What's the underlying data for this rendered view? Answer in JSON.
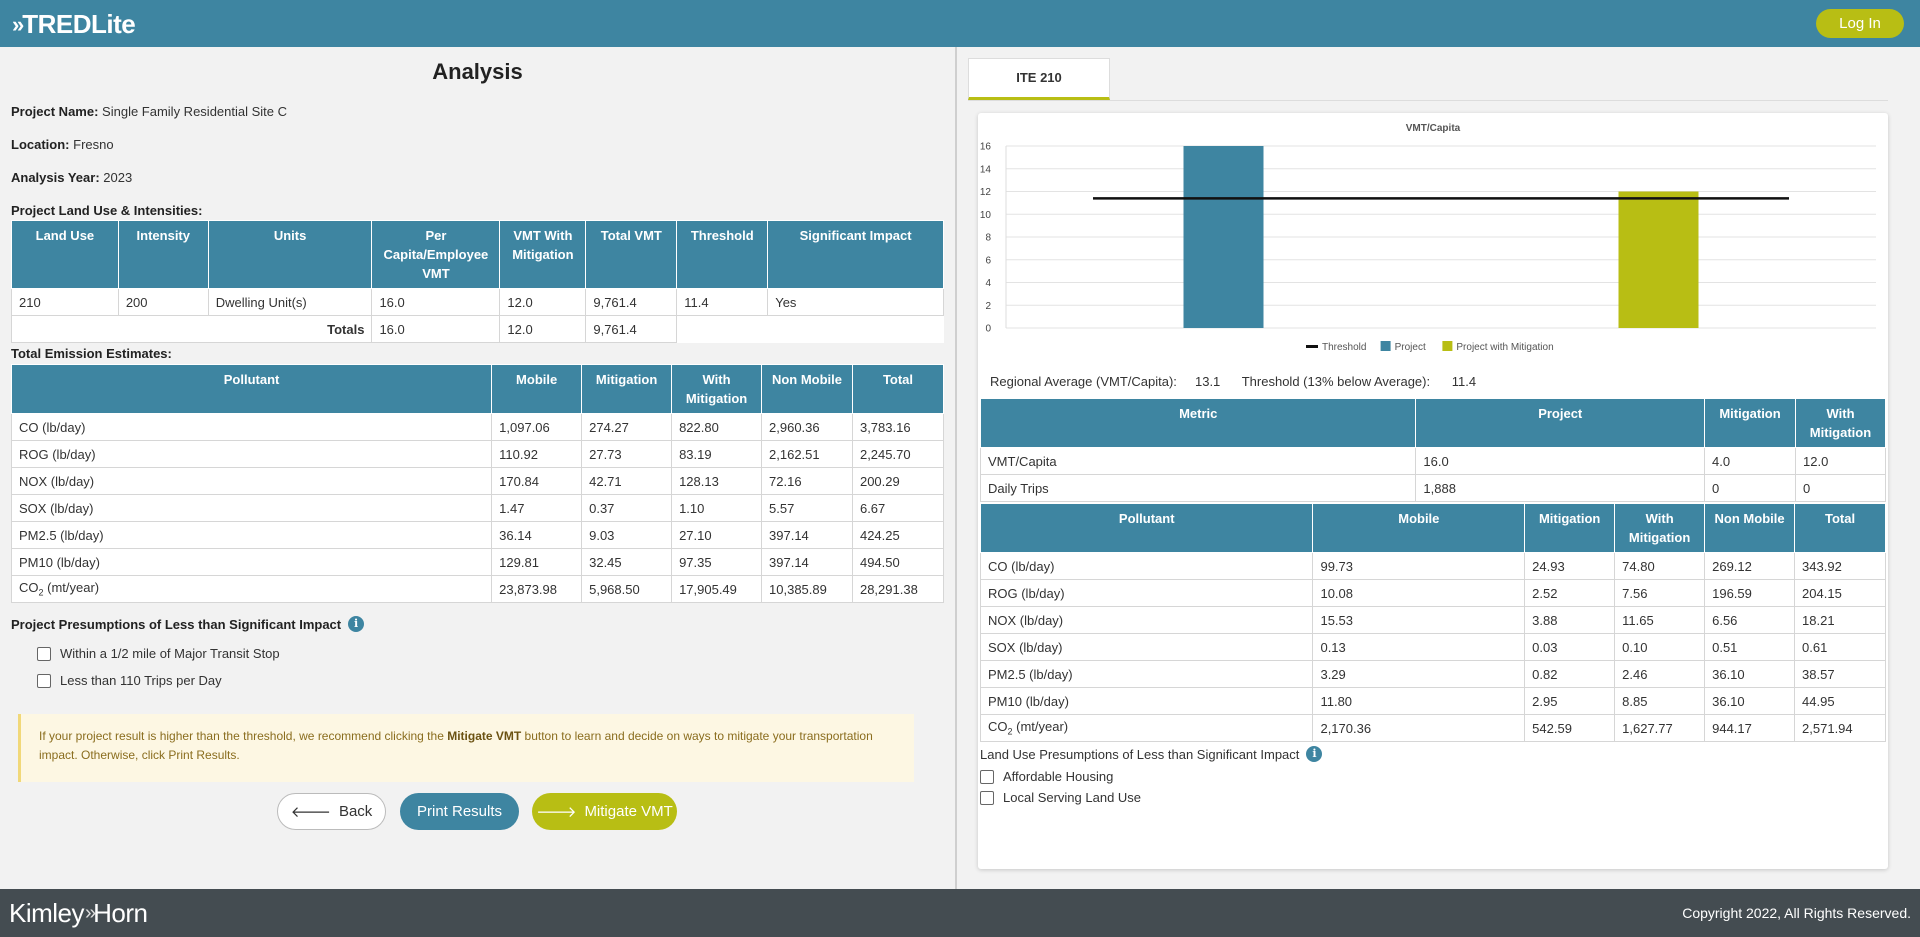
{
  "header": {
    "logo_text": "TREDLite",
    "login_label": "Log In"
  },
  "analysis": {
    "title": "Analysis",
    "project_name_label": "Project Name:",
    "project_name": "Single Family Residential Site C",
    "location_label": "Location:",
    "location": "Fresno",
    "year_label": "Analysis Year:",
    "year": "2023",
    "land_use_title": "Project Land Use & Intensities:",
    "land_use_headers": [
      "Land Use",
      "Intensity",
      "Units",
      "Per Capita/Employee VMT",
      "VMT With Mitigation",
      "Total VMT",
      "Threshold",
      "Significant Impact"
    ],
    "land_use_rows": [
      [
        "210",
        "200",
        "Dwelling Unit(s)",
        "16.0",
        "12.0",
        "9,761.4",
        "11.4",
        "Yes"
      ]
    ],
    "totals": {
      "label": "Totals",
      "per_capita": "16.0",
      "with_mitigation": "12.0",
      "total_vmt": "9,761.4"
    },
    "emission_title": "Total Emission Estimates:",
    "emission_headers": [
      "Pollutant",
      "Mobile",
      "Mitigation",
      "With Mitigation",
      "Non Mobile",
      "Total"
    ],
    "emission_rows": [
      [
        "CO (lb/day)",
        "1,097.06",
        "274.27",
        "822.80",
        "2,960.36",
        "3,783.16"
      ],
      [
        "ROG (lb/day)",
        "110.92",
        "27.73",
        "83.19",
        "2,162.51",
        "2,245.70"
      ],
      [
        "NOX (lb/day)",
        "170.84",
        "42.71",
        "128.13",
        "72.16",
        "200.29"
      ],
      [
        "SOX (lb/day)",
        "1.47",
        "0.37",
        "1.10",
        "5.57",
        "6.67"
      ],
      [
        "PM2.5 (lb/day)",
        "36.14",
        "9.03",
        "27.10",
        "397.14",
        "424.25"
      ],
      [
        "PM10 (lb/day)",
        "129.81",
        "32.45",
        "97.35",
        "397.14",
        "494.50"
      ],
      [
        "CO2 (mt/year)",
        "23,873.98",
        "5,968.50",
        "17,905.49",
        "10,385.89",
        "28,291.38"
      ]
    ],
    "presumptions_title": "Project Presumptions of Less than Significant Impact",
    "presumptions": [
      "Within a 1/2 mile of Major Transit Stop",
      "Less than 110 Trips per Day"
    ],
    "notice_pre": "If your project result is higher than the threshold, we recommend clicking the ",
    "notice_bold": "Mitigate VMT",
    "notice_post": " button to learn and decide on ways to mitigate your transportation impact. Otherwise, click Print Results.",
    "back_label": "Back",
    "print_label": "Print Results",
    "mitigate_label": "Mitigate VMT"
  },
  "right": {
    "tab_label": "ITE 210",
    "regional_label": "Regional Average (VMT/Capita):",
    "regional_value": "13.1",
    "threshold_label": "Threshold (13% below Average):",
    "threshold_value": "11.4",
    "metric_headers": [
      "Metric",
      "Project",
      "Mitigation",
      "With Mitigation"
    ],
    "metric_rows": [
      [
        "VMT/Capita",
        "16.0",
        "4.0",
        "12.0"
      ],
      [
        "Daily Trips",
        "1,888",
        "0",
        "0"
      ]
    ],
    "emission_headers": [
      "Pollutant",
      "Mobile",
      "Mitigation",
      "With Mitigation",
      "Non Mobile",
      "Total"
    ],
    "emission_rows": [
      [
        "CO (lb/day)",
        "99.73",
        "24.93",
        "74.80",
        "269.12",
        "343.92"
      ],
      [
        "ROG (lb/day)",
        "10.08",
        "2.52",
        "7.56",
        "196.59",
        "204.15"
      ],
      [
        "NOX (lb/day)",
        "15.53",
        "3.88",
        "11.65",
        "6.56",
        "18.21"
      ],
      [
        "SOX (lb/day)",
        "0.13",
        "0.03",
        "0.10",
        "0.51",
        "0.61"
      ],
      [
        "PM2.5 (lb/day)",
        "3.29",
        "0.82",
        "2.46",
        "36.10",
        "38.57"
      ],
      [
        "PM10 (lb/day)",
        "11.80",
        "2.95",
        "8.85",
        "36.10",
        "44.95"
      ],
      [
        "CO2 (mt/year)",
        "2,170.36",
        "542.59",
        "1,627.77",
        "944.17",
        "2,571.94"
      ]
    ],
    "land_use_presumptions_title": "Land Use Presumptions of Less than Significant Impact",
    "land_use_presumptions": [
      "Affordable Housing",
      "Local Serving Land Use"
    ]
  },
  "chart_data": {
    "type": "bar",
    "title": "VMT/Capita",
    "categories": [
      "Project",
      "Project with Mitigation"
    ],
    "series": [
      {
        "name": "Project",
        "values": [
          16.0,
          null
        ],
        "color": "#3e85a1"
      },
      {
        "name": "Project with Mitigation",
        "values": [
          null,
          12.0
        ],
        "color": "#b8be14"
      }
    ],
    "threshold": {
      "name": "Threshold",
      "value": 11.4,
      "color": "#111111"
    },
    "ylim": [
      0,
      16
    ],
    "yticks": [
      "0",
      "2",
      "4",
      "6",
      "8",
      "10",
      "12",
      "14",
      "16"
    ],
    "grid": true,
    "legend": "bottom",
    "legend_entries": [
      "Threshold",
      "Project",
      "Project with Mitigation"
    ]
  },
  "footer": {
    "logo_left": "Kimley",
    "logo_right": "Horn",
    "copyright": "Copyright 2022, All Rights Reserved."
  }
}
